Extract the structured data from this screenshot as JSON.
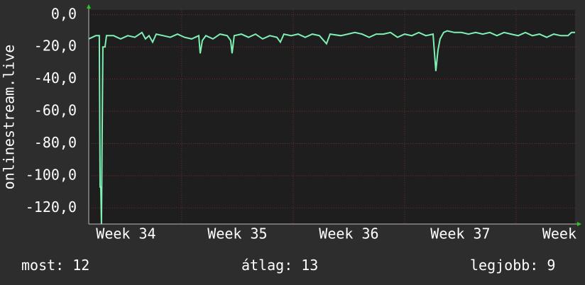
{
  "chart_data": {
    "type": "line",
    "ylabel": "onlinestream.live",
    "x": [
      34.166,
      34.229,
      34.261,
      34.268,
      34.274,
      34.28,
      34.293,
      34.312,
      34.325,
      34.389,
      34.452,
      34.516,
      34.58,
      34.643,
      34.675,
      34.707,
      34.739,
      34.771,
      34.834,
      34.898,
      34.962,
      35.025,
      35.089,
      35.153,
      35.166,
      35.185,
      35.217,
      35.28,
      35.344,
      35.408,
      35.439,
      35.452,
      35.471,
      35.535,
      35.599,
      35.662,
      35.726,
      35.79,
      35.854,
      35.885,
      35.917,
      35.981,
      36.045,
      36.108,
      36.172,
      36.236,
      36.299,
      36.331,
      36.427,
      36.49,
      36.554,
      36.618,
      36.682,
      36.745,
      36.809,
      36.873,
      36.936,
      37.0,
      37.064,
      37.127,
      37.191,
      37.255,
      37.28,
      37.299,
      37.318,
      37.35,
      37.382,
      37.446,
      37.51,
      37.573,
      37.637,
      37.701,
      37.764,
      37.828,
      37.892,
      37.955,
      38.019,
      38.083,
      38.146,
      38.21,
      38.274,
      38.338,
      38.401,
      38.465,
      38.497,
      38.529
    ],
    "series": [
      {
        "color": "#7ff0b4",
        "values": [
          -15,
          -13,
          -13,
          -107,
          -107,
          -130,
          -20,
          -20,
          -13,
          -13,
          -15,
          -13,
          -14,
          -11,
          -15,
          -13,
          -17,
          -12,
          -13,
          -14,
          -12,
          -14,
          -15,
          -13,
          -24,
          -16,
          -13,
          -15,
          -12,
          -13,
          -16,
          -24,
          -13,
          -12,
          -14,
          -12,
          -15,
          -13,
          -14,
          -17,
          -12,
          -13,
          -12,
          -14,
          -12,
          -13,
          -18,
          -12,
          -13,
          -12,
          -11,
          -12,
          -14,
          -12,
          -12,
          -11,
          -14,
          -12,
          -13,
          -11,
          -13,
          -12,
          -35,
          -22,
          -15,
          -11,
          -10,
          -11,
          -11,
          -12,
          -11,
          -12,
          -11,
          -13,
          -11,
          -12,
          -13,
          -11,
          -13,
          -12,
          -14,
          -12,
          -13,
          -13,
          -11,
          -11
        ]
      }
    ],
    "xlim": [
      34.166,
      38.529
    ],
    "ylim": [
      -130,
      3
    ],
    "xticks": [
      {
        "value": 34.5,
        "label": "Week 34"
      },
      {
        "value": 35.5,
        "label": "Week 35"
      },
      {
        "value": 36.5,
        "label": "Week 36"
      },
      {
        "value": 37.5,
        "label": "Week 37"
      },
      {
        "value": 38.5,
        "label": "Week"
      }
    ],
    "xgrid": [
      35,
      36,
      37,
      38
    ],
    "yticks": [
      {
        "value": 0,
        "label": "0,0"
      },
      {
        "value": -20,
        "label": "-20,0"
      },
      {
        "value": -40,
        "label": "-40,0"
      },
      {
        "value": -60,
        "label": "-60,0"
      },
      {
        "value": -80,
        "label": "-80,0"
      },
      {
        "value": -100,
        "label": "-100,0"
      },
      {
        "value": -120,
        "label": "-120,0"
      }
    ],
    "grid": true,
    "stats": [
      {
        "label": "most:",
        "value": 12
      },
      {
        "label": "átlag:",
        "value": 13
      },
      {
        "label": "legjobb:",
        "value": 9
      }
    ]
  }
}
